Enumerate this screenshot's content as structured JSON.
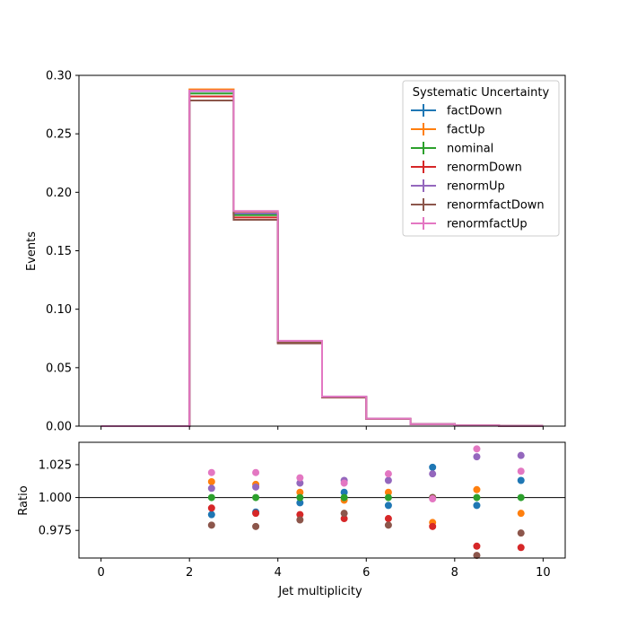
{
  "chart_data": [
    {
      "type": "line",
      "drawstyle": "steps",
      "ylabel": "Events",
      "xlim": [
        -0.5,
        10.5
      ],
      "ylim": [
        0,
        0.3
      ],
      "yticks": [
        0,
        0.05,
        0.1,
        0.15,
        0.2,
        0.25,
        0.3
      ],
      "ytick_labels": [
        "0.00",
        "0.05",
        "0.10",
        "0.15",
        "0.20",
        "0.25",
        "0.30"
      ],
      "grid": false,
      "bin_edges": [
        0,
        1,
        2,
        3,
        4,
        5,
        6,
        7,
        8,
        9,
        10
      ],
      "legend": {
        "title": "Systematic Uncertainty",
        "placement": "top-right"
      },
      "series": [
        {
          "name": "factDown",
          "color": "#1f77b4",
          "values": [
            0,
            0,
            0.282,
            0.1815,
            0.0718,
            0.025,
            0.0062,
            0.0017,
            0.0006,
            0.0002
          ]
        },
        {
          "name": "factUp",
          "color": "#ff7f0e",
          "values": [
            0,
            0,
            0.288,
            0.1825,
            0.0723,
            0.0249,
            0.0063,
            0.0016,
            0.0006,
            0.0002
          ]
        },
        {
          "name": "nominal",
          "color": "#2ca02c",
          "values": [
            0,
            0,
            0.2845,
            0.1805,
            0.072,
            0.0249,
            0.0063,
            0.0017,
            0.0006,
            0.0002
          ]
        },
        {
          "name": "renormDown",
          "color": "#d62728",
          "values": [
            0,
            0,
            0.282,
            0.1785,
            0.0711,
            0.0245,
            0.0062,
            0.0017,
            0.0006,
            0.0002
          ]
        },
        {
          "name": "renormUp",
          "color": "#9467bd",
          "values": [
            0,
            0,
            0.2865,
            0.182,
            0.0728,
            0.0252,
            0.0064,
            0.0017,
            0.0006,
            0.0002
          ]
        },
        {
          "name": "renormfactDown",
          "color": "#8c564b",
          "values": [
            0,
            0,
            0.2785,
            0.1765,
            0.0708,
            0.0246,
            0.0062,
            0.0017,
            0.0006,
            0.0002
          ]
        },
        {
          "name": "renormfactUp",
          "color": "#e377c2",
          "values": [
            0,
            0,
            0.287,
            0.184,
            0.073,
            0.0252,
            0.0064,
            0.0017,
            0.0006,
            0.0002
          ]
        }
      ]
    },
    {
      "type": "scatter",
      "xlabel": "Jet multiplicity",
      "ylabel": "Ratio",
      "xlim": [
        -0.5,
        10.5
      ],
      "ylim": [
        0.954,
        1.042
      ],
      "xticks": [
        0,
        2,
        4,
        6,
        8,
        10
      ],
      "xtick_labels": [
        "0",
        "2",
        "4",
        "6",
        "8",
        "10"
      ],
      "yticks": [
        0.975,
        1.0,
        1.025
      ],
      "ytick_labels": [
        "0.975",
        "1.000",
        "1.025"
      ],
      "reference_line": 1.0,
      "grid": false,
      "x": [
        2.5,
        3.5,
        4.5,
        5.5,
        6.5,
        7.5,
        8.5,
        9.5
      ],
      "series": [
        {
          "name": "factDown",
          "color": "#1f77b4",
          "values": [
            0.987,
            0.989,
            0.996,
            1.004,
            0.994,
            1.023,
            0.994,
            1.013
          ]
        },
        {
          "name": "factUp",
          "color": "#ff7f0e",
          "values": [
            1.012,
            1.01,
            1.004,
            0.998,
            1.004,
            0.981,
            1.006,
            0.988
          ]
        },
        {
          "name": "nominal",
          "color": "#2ca02c",
          "values": [
            1.0,
            1.0,
            1.0,
            1.0,
            1.0,
            1.0,
            1.0,
            1.0
          ]
        },
        {
          "name": "renormDown",
          "color": "#d62728",
          "values": [
            0.992,
            0.988,
            0.987,
            0.984,
            0.984,
            0.978,
            0.963,
            0.962
          ]
        },
        {
          "name": "renormUp",
          "color": "#9467bd",
          "values": [
            1.007,
            1.008,
            1.011,
            1.013,
            1.013,
            1.018,
            1.031,
            1.032
          ]
        },
        {
          "name": "renormfactDown",
          "color": "#8c564b",
          "values": [
            0.979,
            0.978,
            0.983,
            0.988,
            0.979,
            1.0,
            0.956,
            0.973
          ]
        },
        {
          "name": "renormfactUp",
          "color": "#e377c2",
          "values": [
            1.019,
            1.019,
            1.015,
            1.011,
            1.018,
            0.999,
            1.037,
            1.02
          ]
        }
      ]
    }
  ]
}
